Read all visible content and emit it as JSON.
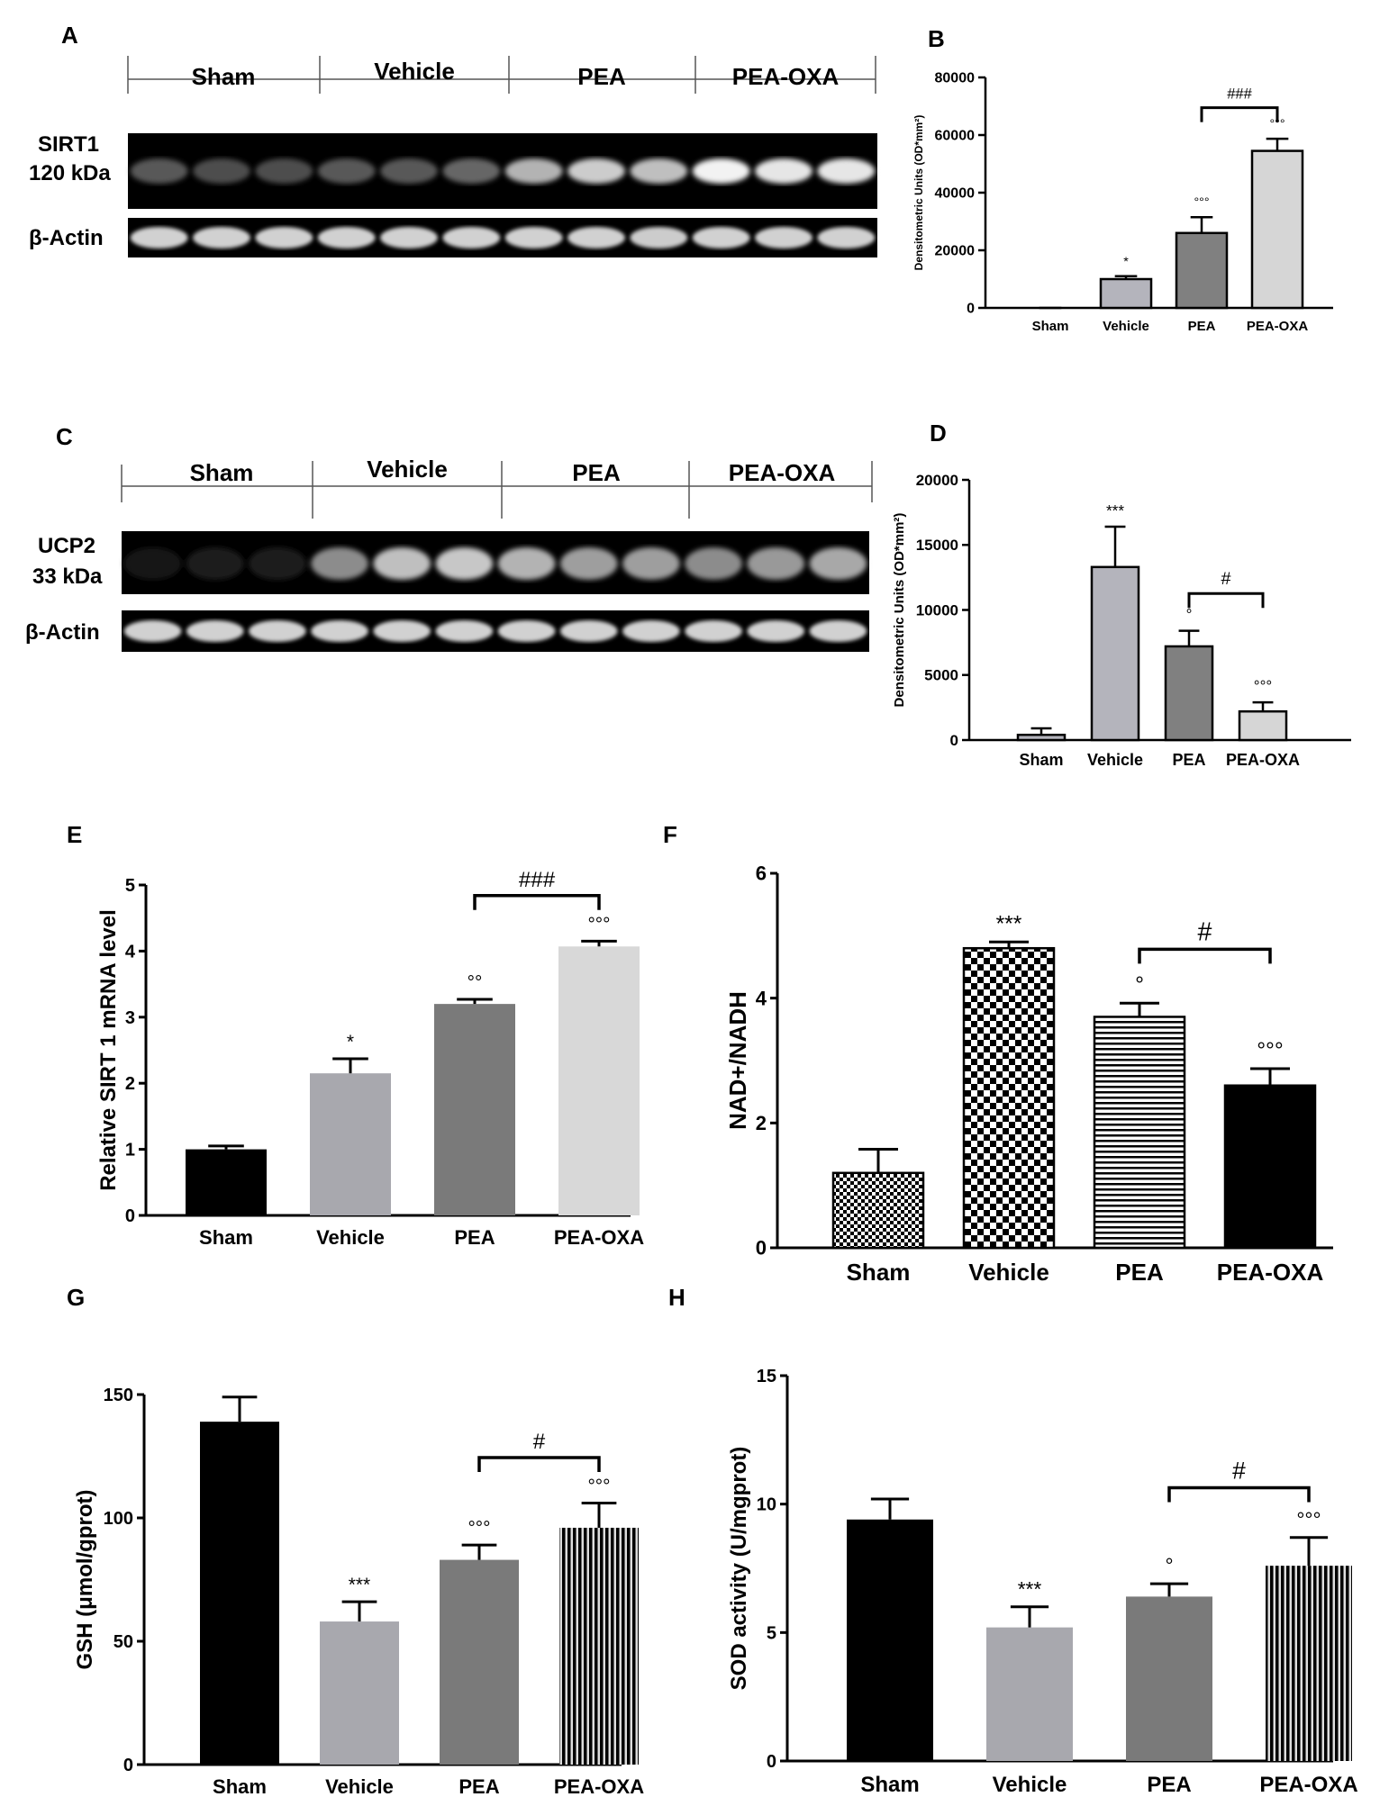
{
  "panels": {
    "A": {
      "letter": "A",
      "groups": [
        "Sham",
        "Vehicle",
        "PEA",
        "PEA-OXA"
      ],
      "blot1_label": [
        "SIRT1",
        "120 kDa"
      ],
      "blot2_label": [
        "β-Actin"
      ]
    },
    "C": {
      "letter": "C",
      "groups": [
        "Sham",
        "Vehicle",
        "PEA",
        "PEA-OXA"
      ],
      "blot1_label": [
        "UCP2",
        "33 kDa"
      ],
      "blot2_label": [
        "β-Actin"
      ]
    }
  },
  "colors": {
    "black": "#000000",
    "light_gray": "#b4b4bc",
    "mid_gray": "#808080",
    "pale_gray": "#d6d6d6"
  },
  "chart_data": [
    {
      "panel": "B",
      "type": "bar",
      "title": "",
      "categories": [
        "Sham",
        "Vehicle",
        "PEA",
        "PEA-OXA"
      ],
      "values": [
        0,
        10000,
        26000,
        54500
      ],
      "errors": [
        0,
        1000,
        5500,
        4200
      ],
      "annotations": [
        "",
        "*",
        "°°°",
        "°°°"
      ],
      "bracket": {
        "from": 2,
        "to": 3,
        "label": "###"
      },
      "ylabel": "Densitometric Units (OD*mm²)",
      "xlabel": "",
      "ylim": [
        0,
        80000
      ],
      "yticks": [
        0,
        20000,
        40000,
        60000,
        80000
      ],
      "fills": [
        "#ffffff",
        "#b4b4bc",
        "#808080",
        "#d6d6d6"
      ]
    },
    {
      "panel": "D",
      "type": "bar",
      "title": "",
      "categories": [
        "Sham",
        "Vehicle",
        "PEA",
        "PEA-OXA"
      ],
      "values": [
        400,
        13300,
        7200,
        2200
      ],
      "errors": [
        500,
        3100,
        1200,
        700
      ],
      "annotations": [
        "",
        "***",
        "°",
        "°°°"
      ],
      "bracket": {
        "from": 2,
        "to": 3,
        "label": "#"
      },
      "ylabel": "Densitometric Units (OD*mm²)",
      "xlabel": "",
      "ylim": [
        0,
        20000
      ],
      "yticks": [
        0,
        5000,
        10000,
        15000,
        20000
      ],
      "fills": [
        "#b4b4bc",
        "#b4b4bc",
        "#808080",
        "#d6d6d6"
      ]
    },
    {
      "panel": "E",
      "type": "bar",
      "title": "",
      "categories": [
        "Sham",
        "Vehicle",
        "PEA",
        "PEA-OXA"
      ],
      "values": [
        1.0,
        2.15,
        3.2,
        4.07
      ],
      "errors": [
        0.05,
        0.22,
        0.07,
        0.08
      ],
      "annotations": [
        "",
        "*",
        "°°",
        "°°°"
      ],
      "bracket": {
        "from": 2,
        "to": 3,
        "label": "###"
      },
      "ylabel": "Relative SIRT 1 mRNA level",
      "xlabel": "",
      "ylim": [
        0,
        5
      ],
      "yticks": [
        0,
        1,
        2,
        3,
        4,
        5
      ],
      "fills": [
        "#000000",
        "#a8a8ae",
        "#7a7a7a",
        "#d8d8d8"
      ]
    },
    {
      "panel": "F",
      "type": "bar",
      "title": "",
      "categories": [
        "Sham",
        "Vehicle",
        "PEA",
        "PEA-OXA"
      ],
      "values": [
        1.2,
        4.8,
        3.7,
        2.6
      ],
      "errors": [
        0.38,
        0.1,
        0.22,
        0.27
      ],
      "annotations": [
        "",
        "***",
        "°",
        "°°°"
      ],
      "bracket": {
        "from": 2,
        "to": 3,
        "label": "#"
      },
      "ylabel": "NAD+/NADH",
      "xlabel": "",
      "ylim": [
        0,
        6
      ],
      "yticks": [
        0,
        2,
        4,
        6
      ],
      "fills": [
        "pattern:fine-check",
        "pattern:check",
        "pattern:hlines",
        "#000000"
      ]
    },
    {
      "panel": "G",
      "type": "bar",
      "title": "",
      "categories": [
        "Sham",
        "Vehicle",
        "PEA",
        "PEA-OXA"
      ],
      "values": [
        139,
        58,
        83,
        96
      ],
      "errors": [
        10,
        8,
        6,
        10
      ],
      "annotations": [
        "",
        "***",
        "°°°",
        "°°°"
      ],
      "bracket": {
        "from": 2,
        "to": 3,
        "label": "#"
      },
      "ylabel": "GSH (μmol/gprot)",
      "xlabel": "",
      "ylim": [
        0,
        150
      ],
      "yticks": [
        0,
        50,
        100,
        150
      ],
      "fills": [
        "#000000",
        "#a8a8ae",
        "#7a7a7a",
        "pattern:vlines"
      ]
    },
    {
      "panel": "H",
      "type": "bar",
      "title": "",
      "categories": [
        "Sham",
        "Vehicle",
        "PEA",
        "PEA-OXA"
      ],
      "values": [
        9.4,
        5.2,
        6.4,
        7.6
      ],
      "errors": [
        0.8,
        0.8,
        0.5,
        1.1
      ],
      "annotations": [
        "",
        "***",
        "°",
        "°°°"
      ],
      "bracket": {
        "from": 2,
        "to": 3,
        "label": "#"
      },
      "ylabel": "SOD activity (U/mgprot)",
      "xlabel": "",
      "ylim": [
        0,
        15
      ],
      "yticks": [
        0,
        5,
        10,
        15
      ],
      "fills": [
        "#000000",
        "#a8a8ae",
        "#7a7a7a",
        "pattern:vlines"
      ]
    }
  ]
}
